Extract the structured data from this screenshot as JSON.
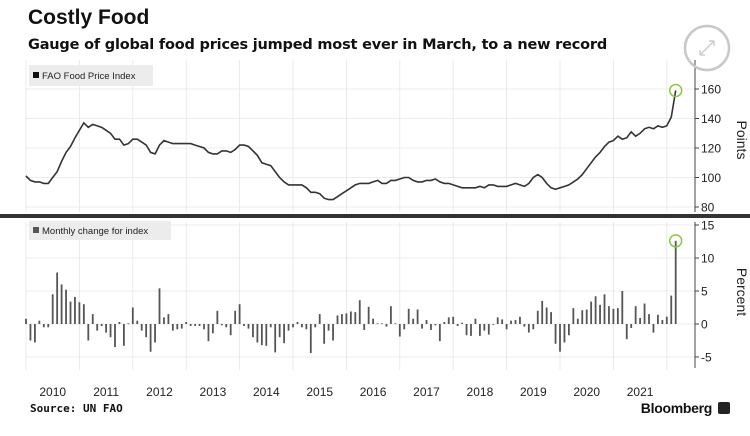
{
  "header": {
    "title": "Costly Food",
    "subtitle": "Gauge of global food prices jumped most ever in March, to a new record"
  },
  "footer": {
    "source": "Source: UN FAO",
    "brand": "Bloomberg"
  },
  "colors": {
    "line": "#333333",
    "bar": "#555555",
    "highlight": "#8dc63f",
    "grid": "#e6e6e6",
    "divider": "#333333"
  },
  "chart_data": [
    {
      "type": "line",
      "legend": "FAO Food Price Index",
      "legend_position": "top-left",
      "ylabel": "Points",
      "ylim": [
        75,
        165
      ],
      "yticks": [
        80,
        100,
        120,
        140,
        160
      ],
      "start": "2010-01",
      "frequency": "monthly",
      "x_tick_labels": [
        "2010",
        "2011",
        "2012",
        "2013",
        "2014",
        "2015",
        "2016",
        "2017",
        "2018",
        "2019",
        "2020",
        "2021"
      ],
      "highlight": "last",
      "values": [
        101,
        98,
        97,
        97,
        96,
        96,
        100,
        104,
        111,
        117,
        121,
        127,
        132,
        137,
        134,
        136,
        135,
        134,
        132,
        130,
        126,
        126,
        122,
        123,
        126,
        126,
        124,
        122,
        117,
        116,
        122,
        125,
        124,
        123,
        123,
        123,
        123,
        123,
        122,
        121,
        120,
        117,
        116,
        116,
        118,
        118,
        117,
        119,
        122,
        122,
        121,
        118,
        115,
        110,
        109,
        108,
        104,
        100,
        97,
        95,
        95,
        95,
        95,
        93,
        90,
        90,
        89,
        86,
        85,
        85,
        87,
        89,
        91,
        93,
        95,
        96,
        96,
        96,
        97,
        98,
        96,
        96,
        98,
        98,
        99,
        100,
        100,
        98,
        97,
        97,
        98,
        98,
        99,
        97,
        96,
        96,
        95,
        94,
        93,
        93,
        93,
        93,
        94,
        93,
        95,
        95,
        94,
        94,
        94,
        95,
        96,
        95,
        94,
        96,
        100,
        102,
        100,
        96,
        93,
        92,
        93,
        94,
        95,
        97,
        99,
        102,
        106,
        110,
        114,
        117,
        121,
        124,
        125,
        128,
        126,
        127,
        131,
        128,
        130,
        133,
        134,
        133,
        135,
        134,
        135,
        141,
        159
      ]
    },
    {
      "type": "bar",
      "legend": "Monthly change for index",
      "legend_position": "top-left",
      "ylabel": "Percent",
      "ylim": [
        -6,
        16
      ],
      "yticks": [
        -5,
        0,
        5,
        10,
        15
      ],
      "start": "2010-01",
      "frequency": "monthly",
      "highlight": "last",
      "values": [
        0.8,
        -2.5,
        -2.8,
        0.5,
        -0.5,
        -0.5,
        4.5,
        7.8,
        6,
        5.2,
        3.4,
        4.1,
        3.3,
        3,
        -2.5,
        1.5,
        -1,
        -0.3,
        -1.3,
        -2,
        -3.5,
        0.3,
        -3.3,
        0.1,
        2.5,
        0.5,
        -1,
        -2,
        -4.2,
        -2.8,
        5.4,
        1,
        1.5,
        -1,
        -0.8,
        -0.7,
        0.3,
        -0.3,
        -0.3,
        -0.3,
        -0.8,
        -2.6,
        -1.4,
        2,
        -0.2,
        -0.5,
        -1.7,
        2,
        3,
        -0.3,
        -0.7,
        -2,
        -2.8,
        -3.2,
        -3.3,
        -0.5,
        -4.3,
        -2,
        -2.9,
        -1,
        -0.5,
        0.3,
        -0.5,
        -0.8,
        -4.4,
        -0.5,
        1.5,
        -3,
        -1,
        -2.5,
        1.3,
        1.5,
        1.6,
        1.9,
        1.8,
        3.6,
        -0.9,
        2.6,
        0.8,
        0.1,
        0.1,
        -0.4,
        2.7,
        0.1,
        -1.9,
        -0.8,
        2.3,
        0.8,
        2.2,
        -0.7,
        0.6,
        -0.9,
        -0.2,
        -2.6,
        0.3,
        1,
        1.1,
        -0.3,
        0.2,
        -1.7,
        -1.8,
        0.8,
        -1.8,
        -1,
        -1.6,
        -0.1,
        1,
        0.7,
        -0.8,
        0.5,
        0.6,
        1.1,
        -0.4,
        -1.3,
        -0.8,
        2,
        3.5,
        2.5,
        1.8,
        -3,
        -4.2,
        -2.8,
        -1.7,
        2.4,
        0.8,
        2.1,
        2.2,
        3.4,
        4.2,
        2.9,
        4.5,
        2.7,
        2.3,
        2.4,
        5,
        -2.3,
        -0.6,
        2.7,
        0.9,
        3.1,
        1.5,
        -1.3,
        1.4,
        0.6,
        1.1,
        4.3,
        12.6
      ]
    }
  ]
}
